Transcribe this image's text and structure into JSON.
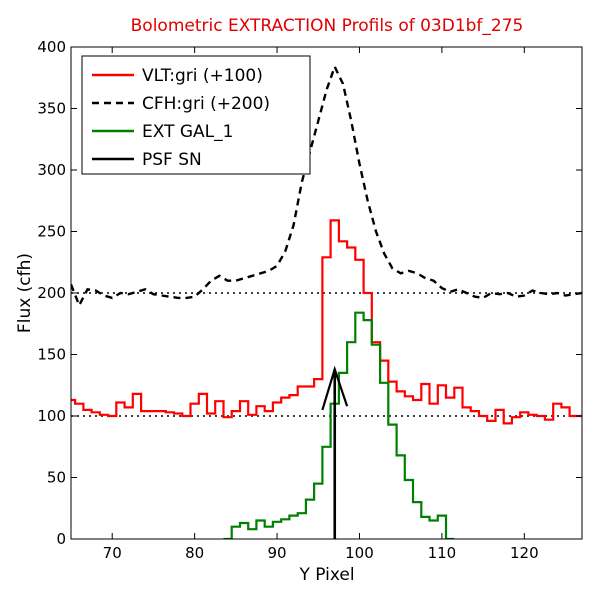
{
  "chart_data": {
    "type": "line",
    "title": "Bolometric EXTRACTION Profils of 03D1bf_275",
    "xlabel": "Y Pixel",
    "ylabel": "Flux (cfh)",
    "xlim": [
      65,
      127
    ],
    "ylim": [
      0,
      400
    ],
    "xticks": [
      70,
      80,
      90,
      100,
      110,
      120
    ],
    "yticks": [
      0,
      50,
      100,
      150,
      200,
      250,
      300,
      350,
      400
    ],
    "grid": false,
    "legend_position": "top-left",
    "reference_lines": [
      100,
      200
    ],
    "series": [
      {
        "name": "VLT:gri (+100)",
        "color": "#ff0000",
        "style": "steps-solid",
        "x": [
          65,
          66,
          67,
          68,
          69,
          70,
          71,
          72,
          73,
          74,
          75,
          76,
          77,
          78,
          79,
          80,
          81,
          82,
          83,
          84,
          85,
          86,
          87,
          88,
          89,
          90,
          91,
          92,
          93,
          94,
          95,
          96,
          97,
          98,
          99,
          100,
          101,
          102,
          103,
          104,
          105,
          106,
          107,
          108,
          109,
          110,
          111,
          112,
          113,
          114,
          115,
          116,
          117,
          118,
          119,
          120,
          121,
          122,
          123,
          124,
          125,
          126,
          127
        ],
        "y": [
          113,
          110,
          105,
          103,
          101,
          100,
          111,
          107,
          118,
          104,
          104,
          104,
          103,
          102,
          100,
          110,
          118,
          102,
          112,
          99,
          104,
          112,
          101,
          108,
          104,
          111,
          115,
          117,
          124,
          124,
          130,
          229,
          259,
          242,
          237,
          227,
          200,
          160,
          145,
          128,
          120,
          116,
          113,
          126,
          110,
          125,
          115,
          123,
          107,
          104,
          100,
          96,
          105,
          94,
          99,
          103,
          101,
          100,
          97,
          110,
          107,
          100,
          100
        ]
      },
      {
        "name": "CFH:gri (+200)",
        "color": "#000000",
        "style": "dashed",
        "x": [
          65,
          66,
          67,
          68,
          69,
          70,
          71,
          72,
          73,
          74,
          75,
          76,
          77,
          78,
          79,
          80,
          81,
          82,
          83,
          84,
          85,
          86,
          87,
          88,
          89,
          90,
          91,
          92,
          93,
          94,
          95,
          96,
          97,
          98,
          99,
          100,
          101,
          102,
          103,
          104,
          105,
          106,
          107,
          108,
          109,
          110,
          111,
          112,
          113,
          114,
          115,
          116,
          117,
          118,
          119,
          120,
          121,
          122,
          123,
          124,
          125,
          126,
          127
        ],
        "y": [
          207,
          190,
          203,
          202,
          198,
          196,
          200,
          199,
          201,
          203,
          199,
          198,
          197,
          196,
          196,
          197,
          203,
          210,
          214,
          210,
          210,
          212,
          214,
          216,
          218,
          222,
          234,
          255,
          290,
          315,
          340,
          365,
          384,
          370,
          340,
          305,
          275,
          250,
          232,
          220,
          216,
          218,
          216,
          212,
          210,
          204,
          201,
          203,
          200,
          197,
          196,
          200,
          199,
          200,
          197,
          198,
          202,
          200,
          199,
          200,
          198,
          199,
          200
        ]
      },
      {
        "name": "EXT GAL_1",
        "color": "#008000",
        "style": "steps-solid",
        "x": [
          84,
          85,
          86,
          87,
          88,
          89,
          90,
          91,
          92,
          93,
          94,
          95,
          96,
          97,
          98,
          99,
          100,
          101,
          102,
          103,
          104,
          105,
          106,
          107,
          108,
          109,
          110,
          111
        ],
        "y": [
          0,
          10,
          13,
          8,
          15,
          10,
          14,
          16,
          19,
          21,
          32,
          45,
          75,
          110,
          135,
          160,
          184,
          178,
          158,
          127,
          93,
          68,
          48,
          30,
          18,
          15,
          19,
          0
        ]
      },
      {
        "name": "PSF SN",
        "color": "#000000",
        "style": "solid",
        "x": [
          95.5,
          97.0,
          98.5
        ],
        "y": [
          105,
          138,
          108
        ],
        "stem": {
          "x": 97.0,
          "y_from": 0,
          "y_to": 138
        }
      }
    ]
  }
}
